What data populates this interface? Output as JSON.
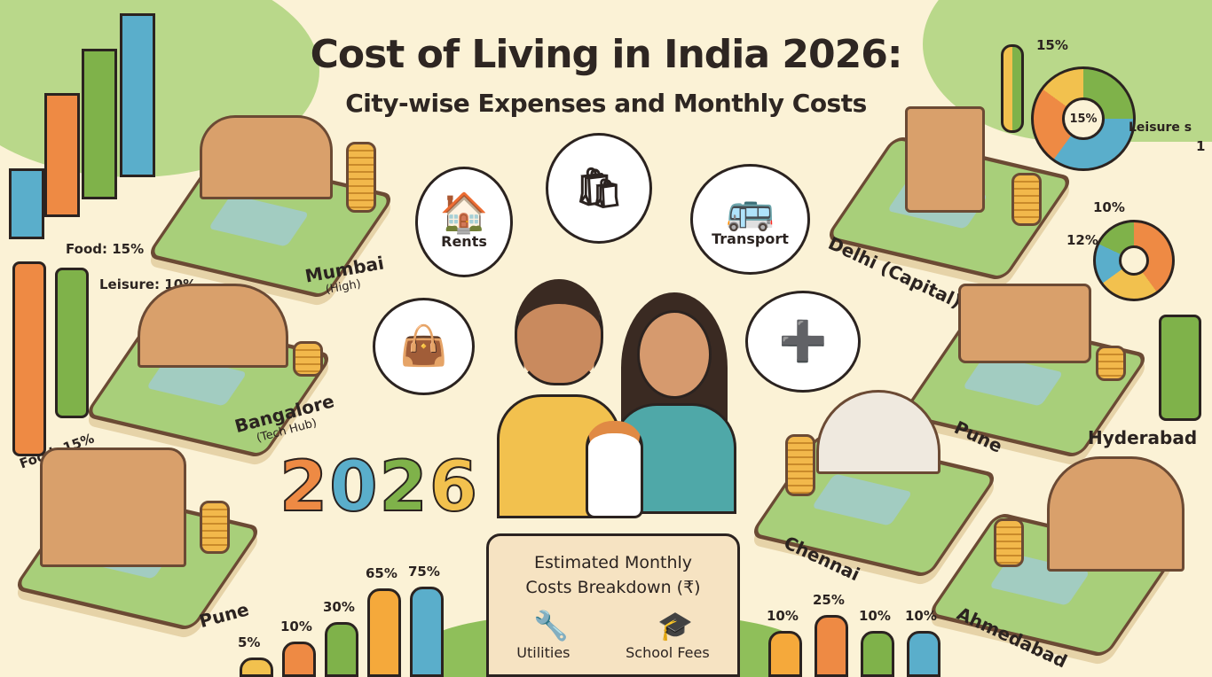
{
  "header": {
    "title": "Cost of Living in India 2026:",
    "subtitle": "City-wise Expenses and Monthly Costs"
  },
  "year": "2026",
  "cities": [
    {
      "name": "Mumbai",
      "note": "(High)"
    },
    {
      "name": "Bangalore",
      "note": "(Tech Hub)"
    },
    {
      "name": "Pune",
      "note": ""
    },
    {
      "name": "Delhi (Capital)",
      "note": ""
    },
    {
      "name": "Pune",
      "note": ""
    },
    {
      "name": "Hyderabad",
      "note": ""
    },
    {
      "name": "Chennai",
      "note": ""
    },
    {
      "name": "Ahmedabad",
      "note": ""
    }
  ],
  "bubbles": [
    {
      "label": "Rents",
      "icon": "house-icon"
    },
    {
      "label": "",
      "icon": "grocery-bag-icon"
    },
    {
      "label": "Transport",
      "icon": "car-bus-icon"
    },
    {
      "label": "",
      "icon": "shopping-bag-icon"
    },
    {
      "label": "",
      "icon": "medical-kit-icon"
    }
  ],
  "left_labels": [
    "Food: 15%",
    "Leisure: 10%",
    "Food: 15%"
  ],
  "right_labels": [
    "15%",
    "15%",
    "Leisure s",
    "1",
    "10%",
    "12%"
  ],
  "scroll": {
    "title_line1": "Estimated Monthly",
    "title_line2": "Costs Breakdown (₹)",
    "items": [
      "Utilities",
      "School Fees"
    ]
  },
  "bars_left": {
    "values": [
      5,
      10,
      30,
      65,
      75
    ],
    "labels": [
      "5%",
      "10%",
      "30%",
      "65%",
      "75%"
    ],
    "colors": [
      "#f2c14e",
      "#ee8a44",
      "#7fb24a",
      "#f5a93b",
      "#5aaecb"
    ]
  },
  "bars_right": {
    "values": [
      10,
      25,
      10,
      10
    ],
    "labels": [
      "10%",
      "25%",
      "10%",
      "10%"
    ],
    "colors": [
      "#f5a93b",
      "#ee8a44",
      "#7fb24a",
      "#5aaecb"
    ]
  },
  "colors": {
    "background": "#fbf2d6",
    "orange": "#ee8a44",
    "green": "#7fb24a",
    "blue": "#5aaecb",
    "yellow": "#f2c14e"
  }
}
